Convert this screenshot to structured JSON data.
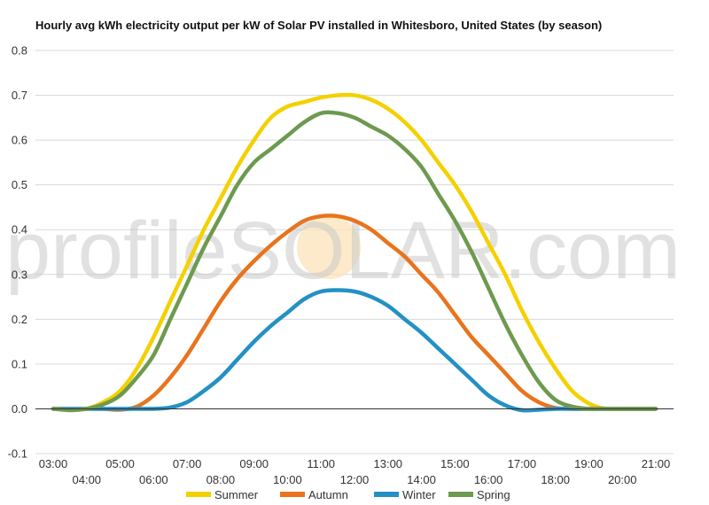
{
  "chart_data": {
    "type": "line",
    "title": "Hourly avg kWh electricity output per kW of Solar PV installed in Whitesboro, United States (by season)",
    "watermark": "profileSOLAR.com",
    "xlabel": "",
    "ylabel": "",
    "ylim": [
      -0.1,
      0.8
    ],
    "y_ticks": [
      -0.1,
      0.0,
      0.1,
      0.2,
      0.3,
      0.4,
      0.5,
      0.6,
      0.7,
      0.8
    ],
    "y_tick_labels": [
      "-0.1",
      "0.0",
      "0.1",
      "0.2",
      "0.3",
      "0.4",
      "0.5",
      "0.6",
      "0.7",
      "0.8"
    ],
    "x_tick_labels": [
      "03:00",
      "04:00",
      "05:00",
      "06:00",
      "07:00",
      "08:00",
      "09:00",
      "10:00",
      "11:00",
      "12:00",
      "13:00",
      "14:00",
      "15:00",
      "16:00",
      "17:00",
      "18:00",
      "19:00",
      "20:00",
      "21:00"
    ],
    "x": [
      "03:00",
      "03:30",
      "04:00",
      "04:30",
      "05:00",
      "05:30",
      "06:00",
      "06:30",
      "07:00",
      "07:30",
      "08:00",
      "08:30",
      "09:00",
      "09:30",
      "10:00",
      "10:30",
      "11:00",
      "11:30",
      "12:00",
      "12:30",
      "13:00",
      "13:30",
      "14:00",
      "14:30",
      "15:00",
      "15:30",
      "16:00",
      "16:30",
      "17:00",
      "17:30",
      "18:00",
      "18:30",
      "19:00",
      "19:30",
      "20:00",
      "20:30",
      "21:00"
    ],
    "series": [
      {
        "name": "Summer",
        "color": "#f5d000",
        "values": [
          0.0,
          -0.002,
          0.0,
          0.015,
          0.04,
          0.09,
          0.16,
          0.24,
          0.32,
          0.4,
          0.47,
          0.54,
          0.6,
          0.65,
          0.675,
          0.685,
          0.695,
          0.7,
          0.7,
          0.69,
          0.67,
          0.64,
          0.6,
          0.55,
          0.5,
          0.44,
          0.37,
          0.3,
          0.22,
          0.15,
          0.09,
          0.04,
          0.012,
          0.0,
          0.0,
          0.0,
          0.0
        ]
      },
      {
        "name": "Autumn",
        "color": "#e8741e",
        "values": [
          0.0,
          0.0,
          0.0,
          0.0,
          -0.002,
          0.005,
          0.03,
          0.07,
          0.12,
          0.18,
          0.24,
          0.29,
          0.33,
          0.365,
          0.395,
          0.42,
          0.43,
          0.43,
          0.42,
          0.4,
          0.37,
          0.34,
          0.3,
          0.26,
          0.21,
          0.16,
          0.12,
          0.08,
          0.04,
          0.015,
          0.002,
          0.0,
          0.0,
          0.0,
          0.0,
          0.0,
          0.0
        ]
      },
      {
        "name": "Winter",
        "color": "#2490c4",
        "values": [
          0.0,
          0.0,
          0.0,
          0.0,
          0.0,
          0.0,
          0.0,
          0.003,
          0.015,
          0.04,
          0.07,
          0.11,
          0.15,
          0.185,
          0.215,
          0.245,
          0.262,
          0.265,
          0.262,
          0.25,
          0.23,
          0.2,
          0.17,
          0.135,
          0.1,
          0.065,
          0.03,
          0.008,
          -0.003,
          -0.002,
          0.0,
          0.0,
          0.0,
          0.0,
          0.0,
          0.0,
          0.0
        ]
      },
      {
        "name": "Spring",
        "color": "#6e9a50",
        "values": [
          0.0,
          -0.003,
          0.0,
          0.01,
          0.03,
          0.07,
          0.12,
          0.2,
          0.28,
          0.36,
          0.43,
          0.5,
          0.55,
          0.58,
          0.61,
          0.64,
          0.66,
          0.66,
          0.65,
          0.63,
          0.61,
          0.58,
          0.54,
          0.48,
          0.42,
          0.35,
          0.27,
          0.19,
          0.12,
          0.06,
          0.02,
          0.005,
          0.0,
          0.0,
          0.0,
          0.0,
          0.0
        ]
      }
    ],
    "grid": true,
    "legend_position": "bottom"
  }
}
